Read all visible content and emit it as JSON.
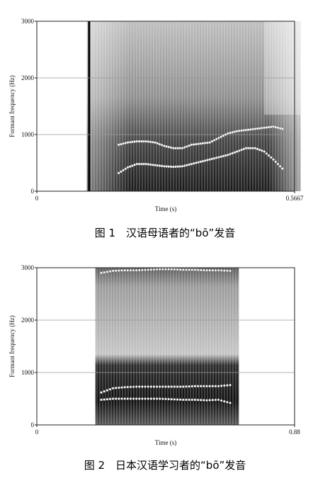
{
  "chart_data": [
    {
      "type": "scatter",
      "caption": "图 1　汉语母语者的“bō”发音",
      "xlabel": "Time (s)",
      "ylabel": "Formant frequency (Hz)",
      "xlim": [
        0,
        0.5667
      ],
      "ylim": [
        0,
        3000
      ],
      "x_tick_labels": [
        "0",
        "0.5667"
      ],
      "y_tick_labels": [
        "0",
        "1000",
        "2000",
        "3000"
      ],
      "grid": true,
      "series": [
        {
          "x": [
            0.18,
            0.2,
            0.22,
            0.24,
            0.26,
            0.28,
            0.3,
            0.32,
            0.34,
            0.36,
            0.38,
            0.4,
            0.42,
            0.44,
            0.46,
            0.48,
            0.5,
            0.52,
            0.54
          ],
          "y": [
            820,
            860,
            880,
            880,
            860,
            800,
            760,
            760,
            820,
            840,
            860,
            940,
            1020,
            1060,
            1080,
            1100,
            1120,
            1140,
            1100
          ]
        },
        {
          "x": [
            0.18,
            0.2,
            0.22,
            0.24,
            0.26,
            0.28,
            0.3,
            0.32,
            0.34,
            0.36,
            0.38,
            0.4,
            0.42,
            0.44,
            0.46,
            0.48,
            0.5,
            0.52,
            0.54
          ],
          "y": [
            320,
            420,
            480,
            480,
            460,
            440,
            430,
            440,
            480,
            520,
            560,
            600,
            640,
            700,
            760,
            760,
            700,
            560,
            400
          ]
        }
      ]
    },
    {
      "type": "scatter",
      "caption": "图 2　日本汉语学习者的“bō”发音",
      "xlabel": "Time (s)",
      "ylabel": "Formant frequency (Hz)",
      "xlim": [
        0,
        0.88
      ],
      "ylim": [
        0,
        3000
      ],
      "x_tick_labels": [
        "0",
        "0.88"
      ],
      "y_tick_labels": [
        "0",
        "1000",
        "2000",
        "3000"
      ],
      "grid": true,
      "series": [
        {
          "x": [
            0.22,
            0.26,
            0.3,
            0.34,
            0.38,
            0.42,
            0.46,
            0.5,
            0.54,
            0.58,
            0.62,
            0.66
          ],
          "y": [
            2900,
            2940,
            2950,
            2950,
            2960,
            2970,
            2970,
            2960,
            2960,
            2950,
            2950,
            2940
          ]
        },
        {
          "x": [
            0.22,
            0.26,
            0.3,
            0.34,
            0.38,
            0.42,
            0.46,
            0.5,
            0.54,
            0.58,
            0.62,
            0.66
          ],
          "y": [
            620,
            700,
            720,
            730,
            730,
            730,
            730,
            730,
            740,
            740,
            740,
            760
          ]
        },
        {
          "x": [
            0.22,
            0.26,
            0.3,
            0.34,
            0.38,
            0.42,
            0.46,
            0.5,
            0.54,
            0.58,
            0.62,
            0.66
          ],
          "y": [
            480,
            500,
            500,
            500,
            500,
            500,
            490,
            480,
            480,
            470,
            480,
            420
          ]
        }
      ]
    }
  ]
}
